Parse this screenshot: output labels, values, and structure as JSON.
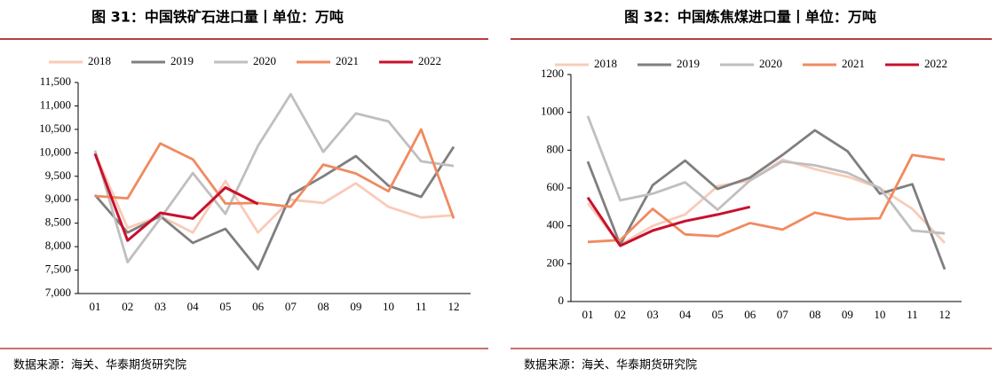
{
  "chart_data": [
    {
      "type": "line",
      "title": "图 31：中国铁矿石进口量丨单位：万吨",
      "source": "数据来源：海关、华泰期货研究院",
      "categories": [
        "01",
        "02",
        "03",
        "04",
        "05",
        "06",
        "07",
        "08",
        "09",
        "10",
        "11",
        "12"
      ],
      "ylim": [
        7000,
        11500
      ],
      "yticks": [
        {
          "value": 7000,
          "label": "7,000"
        },
        {
          "value": 7500,
          "label": "7,500"
        },
        {
          "value": 8000,
          "label": "8,000"
        },
        {
          "value": 8500,
          "label": "8,500"
        },
        {
          "value": 9000,
          "label": "9,000"
        },
        {
          "value": 9500,
          "label": "9,500"
        },
        {
          "value": 10000,
          "label": "10,000"
        },
        {
          "value": 10500,
          "label": "10,500"
        },
        {
          "value": 11000,
          "label": "11,000"
        },
        {
          "value": 11500,
          "label": "11,500"
        }
      ],
      "grid": false,
      "series": [
        {
          "name": "2018",
          "color": "#f8cbb8",
          "values": [
            10000,
            8400,
            8650,
            8300,
            9400,
            8300,
            9000,
            8930,
            9350,
            8850,
            8620,
            8670
          ]
        },
        {
          "name": "2019",
          "color": "#7f7f7f",
          "values": [
            9100,
            8300,
            8650,
            8080,
            8380,
            7520,
            9100,
            9500,
            9930,
            9300,
            9060,
            10130
          ]
        },
        {
          "name": "2020",
          "color": "#bfbfbf",
          "values": [
            10050,
            7670,
            8600,
            9570,
            8700,
            10150,
            11250,
            10020,
            10840,
            10670,
            9820,
            9720
          ]
        },
        {
          "name": "2021",
          "color": "#f08a60",
          "values": [
            9080,
            9030,
            10200,
            9860,
            8920,
            8930,
            8850,
            9750,
            9560,
            9180,
            10500,
            8600
          ]
        },
        {
          "name": "2022",
          "color": "#c8102e",
          "values": [
            9980,
            8130,
            8720,
            8600,
            9260,
            8910,
            null,
            null,
            null,
            null,
            null,
            null
          ]
        }
      ]
    },
    {
      "type": "line",
      "title": "图 32：中国炼焦煤进口量丨单位：万吨",
      "source": "数据来源：海关、华泰期货研究院",
      "categories": [
        "01",
        "02",
        "03",
        "04",
        "05",
        "06",
        "07",
        "08",
        "09",
        "10",
        "11",
        "12"
      ],
      "ylim": [
        0,
        1200
      ],
      "yticks": [
        0,
        200,
        400,
        600,
        800,
        1000,
        1200
      ],
      "grid": false,
      "series": [
        {
          "name": "2018",
          "color": "#f8cbb8",
          "values": [
            520,
            300,
            400,
            460,
            610,
            640,
            750,
            700,
            660,
            600,
            490,
            310
          ]
        },
        {
          "name": "2019",
          "color": "#7f7f7f",
          "values": [
            740,
            300,
            615,
            745,
            595,
            655,
            775,
            905,
            795,
            570,
            620,
            170
          ]
        },
        {
          "name": "2020",
          "color": "#bfbfbf",
          "values": [
            980,
            535,
            570,
            630,
            485,
            640,
            740,
            720,
            680,
            600,
            375,
            360
          ]
        },
        {
          "name": "2021",
          "color": "#f08a60",
          "values": [
            315,
            325,
            490,
            355,
            345,
            415,
            380,
            470,
            435,
            440,
            775,
            750
          ]
        },
        {
          "name": "2022",
          "color": "#c8102e",
          "values": [
            550,
            295,
            375,
            425,
            460,
            500,
            null,
            null,
            null,
            null,
            null,
            null
          ]
        }
      ]
    }
  ]
}
